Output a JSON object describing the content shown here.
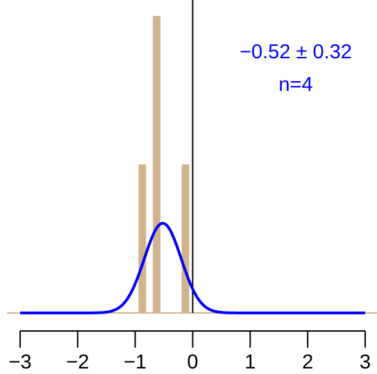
{
  "chart_data": {
    "type": "bar",
    "bar_color": "#d2b48c",
    "curve_color": "#0000ff",
    "axis_color": "#000000",
    "baseline_color": "#d2b48c",
    "xlim": [
      -3,
      3
    ],
    "x_ticks": [
      -3,
      -2,
      -1,
      0,
      1,
      2,
      3
    ],
    "x_tick_labels": [
      "−3",
      "−2",
      "−1",
      "0",
      "1",
      "2",
      "3"
    ],
    "ylim": [
      0,
      2
    ],
    "histogram": {
      "bin_centers": [
        -0.875,
        -0.625,
        -0.375,
        -0.125
      ],
      "values": [
        1,
        2,
        0,
        1
      ]
    },
    "curve": {
      "distribution": "normal",
      "mean": -0.52,
      "sd": 0.32,
      "peak_fraction_of_tallest_bar": 0.302
    },
    "annotation": {
      "line1": "−0.52 ± 0.32",
      "line2": "n=4"
    },
    "vline_x": 0
  }
}
